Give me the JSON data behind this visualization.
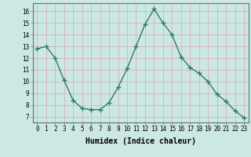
{
  "x": [
    0,
    1,
    2,
    3,
    4,
    5,
    6,
    7,
    8,
    9,
    10,
    11,
    12,
    13,
    14,
    15,
    16,
    17,
    18,
    19,
    20,
    21,
    22,
    23
  ],
  "y": [
    12.8,
    13.0,
    12.0,
    10.1,
    8.4,
    7.7,
    7.6,
    7.6,
    8.2,
    9.5,
    11.1,
    13.0,
    14.9,
    16.2,
    15.0,
    14.0,
    12.1,
    11.2,
    10.7,
    10.0,
    8.9,
    8.3,
    7.5,
    6.9
  ],
  "xlabel": "Humidex (Indice chaleur)",
  "bg_color": "#cce8e4",
  "line_color": "#2d7a6e",
  "grid_color": "#dba8a8",
  "ylim": [
    6.5,
    16.7
  ],
  "xlim": [
    -0.5,
    23.5
  ],
  "yticks": [
    7,
    8,
    9,
    10,
    11,
    12,
    13,
    14,
    15,
    16
  ],
  "xticks": [
    0,
    1,
    2,
    3,
    4,
    5,
    6,
    7,
    8,
    9,
    10,
    11,
    12,
    13,
    14,
    15,
    16,
    17,
    18,
    19,
    20,
    21,
    22,
    23
  ],
  "tick_fontsize": 5.5,
  "xlabel_fontsize": 7.0
}
